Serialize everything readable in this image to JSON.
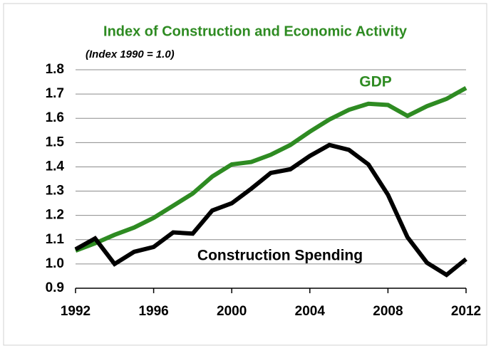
{
  "chart_data": {
    "type": "line",
    "title": "Index of Construction and Economic Activity",
    "subtitle": "(Index 1990 = 1.0)",
    "x": [
      1992,
      1993,
      1994,
      1995,
      1996,
      1997,
      1998,
      1999,
      2000,
      2001,
      2002,
      2003,
      2004,
      2005,
      2006,
      2007,
      2008,
      2009,
      2010,
      2011,
      2012
    ],
    "series": [
      {
        "name": "GDP",
        "color": "#2e8b22",
        "values": [
          1.055,
          1.085,
          1.12,
          1.15,
          1.19,
          1.24,
          1.29,
          1.36,
          1.41,
          1.42,
          1.45,
          1.49,
          1.545,
          1.595,
          1.635,
          1.66,
          1.655,
          1.61,
          1.65,
          1.68,
          1.725
        ]
      },
      {
        "name": "Construction Spending",
        "color": "#000000",
        "values": [
          1.06,
          1.105,
          1.0,
          1.05,
          1.07,
          1.13,
          1.125,
          1.22,
          1.25,
          1.31,
          1.375,
          1.39,
          1.445,
          1.49,
          1.47,
          1.41,
          1.285,
          1.11,
          1.005,
          0.955,
          1.02
        ]
      }
    ],
    "xlim": [
      1992,
      2012
    ],
    "xticks": [
      1992,
      1996,
      2000,
      2004,
      2008,
      2012
    ],
    "ylim": [
      0.9,
      1.8
    ],
    "yticks": [
      0.9,
      {
        "value": 1,
        "label": "1.0"
      },
      1.1,
      1.2,
      1.3,
      1.4,
      1.5,
      1.6,
      1.7,
      1.8
    ],
    "grid": true
  }
}
